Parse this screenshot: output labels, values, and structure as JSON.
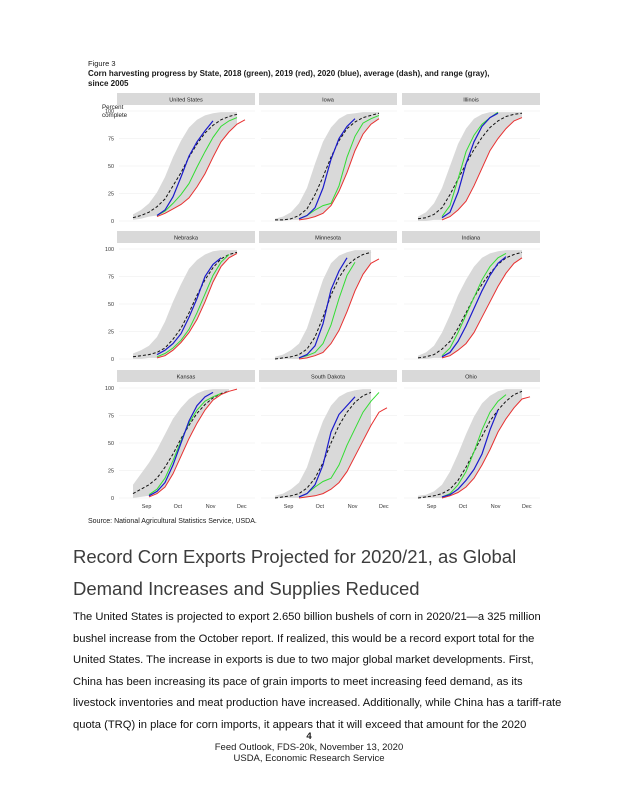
{
  "figure": {
    "label": "Figure 3",
    "title": "Corn harvesting progress by State, 2018 (green), 2019 (red), 2020 (blue), average (dash), and range (gray), since 2005",
    "source": "Source: National Agricultural Statistics Service, USDA.",
    "y_axis_title": "Percent complete"
  },
  "colors": {
    "y2018": "#33dd33",
    "y2019": "#e83030",
    "y2020": "#1a1acc",
    "average": "#111111",
    "range": "#d9d9d9",
    "strip": "#d9d9d9"
  },
  "chart_data": {
    "type": "line",
    "facets": [
      "United States",
      "Iowa",
      "Illinois",
      "Nebraska",
      "Minnesota",
      "Indiana",
      "Kansas",
      "South Dakota",
      "Ohio"
    ],
    "x_ticks": [
      "Sep",
      "Oct",
      "Nov",
      "Dec"
    ],
    "y_ticks": [
      "0",
      "25",
      "50",
      "75",
      "100"
    ],
    "ylim": [
      0,
      100
    ],
    "series_names": [
      "2018",
      "2019",
      "2020",
      "average",
      "range"
    ],
    "x_points": [
      "Aug 26",
      "Sep 2",
      "Sep 9",
      "Sep 16",
      "Sep 23",
      "Sep 30",
      "Oct 7",
      "Oct 14",
      "Oct 21",
      "Oct 28",
      "Nov 4",
      "Nov 11",
      "Nov 18",
      "Nov 25",
      "Dec 2",
      "Dec 9"
    ],
    "panels": [
      {
        "name": "United States",
        "y2018": [
          null,
          null,
          null,
          null,
          5,
          9,
          16,
          24,
          34,
          49,
          63,
          76,
          86,
          91,
          94,
          null
        ],
        "y2019": [
          null,
          null,
          null,
          null,
          4,
          7,
          11,
          15,
          21,
          31,
          43,
          58,
          72,
          81,
          88,
          92
        ],
        "y2020": [
          null,
          null,
          null,
          null,
          5,
          10,
          22,
          40,
          59,
          72,
          82,
          91,
          null,
          null,
          null,
          null
        ],
        "average": [
          null,
          3,
          5,
          8,
          13,
          20,
          32,
          44,
          58,
          70,
          80,
          87,
          92,
          95,
          97,
          null
        ],
        "range_low": [
          null,
          1,
          2,
          4,
          5,
          7,
          11,
          15,
          21,
          31,
          43,
          58,
          72,
          81,
          88,
          null
        ],
        "range_high": [
          null,
          6,
          10,
          16,
          26,
          40,
          58,
          73,
          85,
          92,
          96,
          98,
          99,
          99,
          99,
          null
        ]
      },
      {
        "name": "Iowa",
        "y2018": [
          null,
          null,
          null,
          null,
          2,
          5,
          10,
          14,
          16,
          32,
          58,
          77,
          89,
          93,
          96,
          null
        ],
        "y2019": [
          null,
          null,
          null,
          null,
          1,
          2,
          4,
          7,
          14,
          27,
          44,
          64,
          79,
          88,
          93,
          null
        ],
        "y2020": [
          null,
          null,
          null,
          null,
          2,
          5,
          12,
          30,
          56,
          75,
          86,
          93,
          null,
          null,
          null,
          null
        ],
        "average": [
          null,
          1,
          1,
          2,
          5,
          11,
          24,
          40,
          58,
          73,
          84,
          90,
          94,
          96,
          98,
          null
        ],
        "range_low": [
          null,
          0,
          0,
          1,
          1,
          2,
          4,
          7,
          14,
          27,
          44,
          64,
          79,
          88,
          93,
          null
        ],
        "range_high": [
          null,
          2,
          4,
          8,
          16,
          30,
          52,
          72,
          85,
          93,
          97,
          98,
          99,
          99,
          99,
          null
        ]
      },
      {
        "name": "Illinois",
        "y2018": [
          null,
          null,
          null,
          null,
          4,
          14,
          38,
          63,
          78,
          88,
          94,
          99,
          null,
          null,
          null,
          null
        ],
        "y2019": [
          null,
          null,
          null,
          null,
          1,
          4,
          10,
          18,
          32,
          48,
          64,
          75,
          84,
          91,
          94,
          null
        ],
        "y2020": [
          null,
          null,
          null,
          null,
          3,
          8,
          26,
          52,
          72,
          86,
          94,
          98,
          null,
          null,
          null,
          null
        ],
        "average": [
          null,
          2,
          3,
          6,
          12,
          24,
          38,
          52,
          65,
          76,
          85,
          91,
          95,
          97,
          98,
          null
        ],
        "range_low": [
          null,
          0,
          0,
          1,
          1,
          4,
          10,
          18,
          32,
          48,
          64,
          75,
          84,
          91,
          94,
          null
        ],
        "range_high": [
          null,
          4,
          8,
          16,
          30,
          50,
          70,
          84,
          93,
          97,
          99,
          99,
          99,
          99,
          99,
          null
        ]
      },
      {
        "name": "Nebraska",
        "y2018": [
          null,
          null,
          null,
          null,
          2,
          5,
          10,
          17,
          27,
          42,
          59,
          76,
          88,
          95,
          null,
          null
        ],
        "y2019": [
          null,
          null,
          null,
          null,
          1,
          3,
          8,
          15,
          24,
          36,
          52,
          70,
          84,
          92,
          96,
          null
        ],
        "y2020": [
          null,
          null,
          null,
          null,
          4,
          8,
          14,
          23,
          38,
          55,
          75,
          86,
          92,
          null,
          null,
          null
        ],
        "average": [
          null,
          2,
          3,
          4,
          6,
          10,
          18,
          28,
          42,
          58,
          72,
          83,
          91,
          95,
          97,
          null
        ],
        "range_low": [
          null,
          0,
          0,
          1,
          1,
          3,
          8,
          15,
          24,
          36,
          52,
          70,
          84,
          92,
          96,
          null
        ],
        "range_high": [
          null,
          5,
          8,
          12,
          20,
          34,
          52,
          68,
          82,
          90,
          95,
          98,
          99,
          99,
          99,
          null
        ]
      },
      {
        "name": "Minnesota",
        "y2018": [
          null,
          null,
          null,
          null,
          1,
          3,
          6,
          14,
          31,
          55,
          76,
          88,
          null,
          null,
          null,
          null
        ],
        "y2019": [
          null,
          null,
          null,
          null,
          0,
          1,
          3,
          6,
          14,
          26,
          43,
          62,
          77,
          87,
          91,
          null
        ],
        "y2020": [
          null,
          null,
          null,
          null,
          1,
          4,
          12,
          32,
          63,
          80,
          92,
          null,
          null,
          null,
          null,
          null
        ],
        "average": [
          null,
          0,
          1,
          2,
          4,
          9,
          20,
          38,
          58,
          74,
          85,
          91,
          95,
          97,
          null,
          null
        ],
        "range_low": [
          null,
          0,
          0,
          0,
          0,
          1,
          3,
          6,
          14,
          26,
          43,
          62,
          77,
          87,
          91,
          null
        ],
        "range_high": [
          null,
          2,
          4,
          8,
          14,
          28,
          50,
          72,
          87,
          94,
          97,
          99,
          99,
          99,
          null,
          null
        ]
      },
      {
        "name": "Indiana",
        "y2018": [
          null,
          null,
          null,
          null,
          3,
          10,
          24,
          40,
          56,
          72,
          84,
          92,
          96,
          null,
          null,
          null
        ],
        "y2019": [
          null,
          null,
          null,
          null,
          1,
          3,
          8,
          14,
          24,
          38,
          52,
          66,
          78,
          87,
          92,
          null
        ],
        "y2020": [
          null,
          null,
          null,
          null,
          2,
          6,
          16,
          30,
          46,
          62,
          76,
          87,
          93,
          null,
          null,
          null
        ],
        "average": [
          null,
          1,
          2,
          4,
          9,
          16,
          28,
          42,
          56,
          68,
          78,
          86,
          92,
          95,
          97,
          null
        ],
        "range_low": [
          null,
          0,
          0,
          1,
          1,
          3,
          8,
          14,
          24,
          38,
          52,
          66,
          78,
          87,
          92,
          null
        ],
        "range_high": [
          null,
          3,
          6,
          12,
          24,
          40,
          58,
          72,
          84,
          92,
          96,
          98,
          99,
          99,
          99,
          null
        ]
      },
      {
        "name": "Kansas",
        "y2018": [
          null,
          null,
          null,
          3,
          8,
          18,
          34,
          52,
          68,
          80,
          88,
          92,
          95,
          null,
          null,
          null
        ],
        "y2019": [
          null,
          null,
          null,
          1,
          4,
          10,
          22,
          38,
          54,
          68,
          80,
          89,
          94,
          97,
          99,
          null
        ],
        "y2020": [
          null,
          null,
          null,
          2,
          6,
          14,
          30,
          50,
          70,
          84,
          92,
          96,
          null,
          null,
          null,
          null
        ],
        "average": [
          null,
          4,
          8,
          12,
          18,
          28,
          40,
          54,
          66,
          77,
          85,
          91,
          95,
          97,
          null,
          null
        ],
        "range_low": [
          null,
          0,
          1,
          2,
          4,
          10,
          22,
          38,
          54,
          68,
          80,
          89,
          94,
          97,
          null,
          null
        ],
        "range_high": [
          null,
          12,
          22,
          32,
          44,
          58,
          72,
          82,
          90,
          95,
          98,
          99,
          99,
          99,
          null,
          null
        ]
      },
      {
        "name": "South Dakota",
        "y2018": [
          null,
          null,
          null,
          null,
          1,
          4,
          10,
          15,
          18,
          30,
          48,
          63,
          78,
          88,
          96,
          null
        ],
        "y2019": [
          null,
          null,
          null,
          null,
          0,
          1,
          2,
          4,
          8,
          14,
          24,
          38,
          52,
          66,
          78,
          82
        ],
        "y2020": [
          null,
          null,
          null,
          null,
          1,
          4,
          12,
          30,
          60,
          76,
          84,
          92,
          null,
          null,
          null,
          null
        ],
        "average": [
          null,
          0,
          1,
          2,
          4,
          9,
          18,
          32,
          50,
          66,
          78,
          87,
          93,
          96,
          null,
          null
        ],
        "range_low": [
          null,
          0,
          0,
          0,
          0,
          1,
          2,
          4,
          8,
          14,
          24,
          38,
          52,
          66,
          78,
          null
        ],
        "range_high": [
          null,
          2,
          4,
          8,
          14,
          28,
          50,
          70,
          84,
          92,
          96,
          98,
          99,
          99,
          null,
          null
        ]
      },
      {
        "name": "Ohio",
        "y2018": [
          null,
          null,
          null,
          null,
          1,
          4,
          12,
          24,
          42,
          62,
          78,
          88,
          94,
          null,
          null,
          null
        ],
        "y2019": [
          null,
          null,
          null,
          null,
          0,
          2,
          5,
          10,
          18,
          30,
          44,
          60,
          72,
          82,
          90,
          92
        ],
        "y2020": [
          null,
          null,
          null,
          null,
          1,
          3,
          8,
          16,
          26,
          40,
          62,
          80,
          null,
          null,
          null,
          null
        ],
        "average": [
          null,
          0,
          1,
          2,
          4,
          8,
          16,
          28,
          42,
          56,
          70,
          80,
          88,
          94,
          97,
          null
        ],
        "range_low": [
          null,
          0,
          0,
          0,
          0,
          2,
          5,
          10,
          18,
          30,
          44,
          60,
          72,
          82,
          90,
          null
        ],
        "range_high": [
          null,
          2,
          3,
          6,
          12,
          24,
          40,
          58,
          74,
          86,
          93,
          97,
          99,
          99,
          99,
          null
        ]
      }
    ]
  },
  "section": {
    "heading": "Record Corn Exports Projected for 2020/21, as Global Demand Increases and Supplies Reduced",
    "body": "The United States is projected to export 2.650 billion bushels of corn in 2020/21—a 325 million bushel increase from the October report. If realized, this would be a record export total for the United States. The increase in exports is due to two major global market developments. First, China has been increasing its pace of grain imports to meet increasing feed demand, as its livestock inventories and meat production have increased.  Additionally, while China has a tariff-rate quota (TRQ) in place for corn imports, it appears that it will exceed that amount for the 2020"
  },
  "footer": {
    "page": "4",
    "line1": "Feed Outlook, FDS-20k, November 13, 2020",
    "line2": "USDA, Economic Research Service"
  }
}
